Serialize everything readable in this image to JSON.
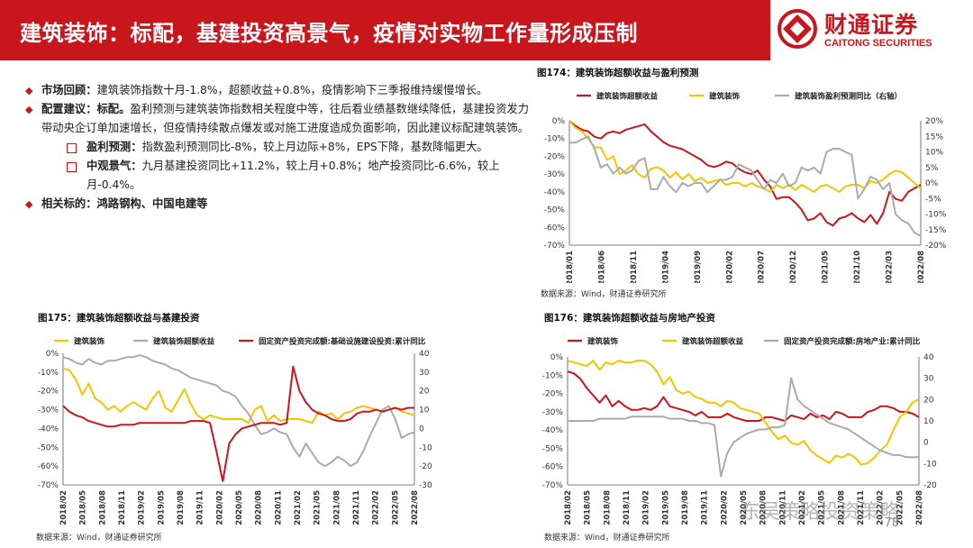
{
  "header": {
    "title": "建筑装饰：标配，基建投资高景气，疫情对实物工作量形成压制"
  },
  "logo": {
    "cn": "财通证券",
    "en": "CAITONG SECURITIES",
    "icon": "caitong-logo-icon"
  },
  "bullets": {
    "b1": {
      "head": "市场回顾：",
      "text": "建筑装饰指数十月-1.8%，超额收益+0.8%，疫情影响下三季报维持缓慢增长。"
    },
    "b2": {
      "head": "配置建议：标配。",
      "text": "盈利预测与建筑装饰指数相关程度中等，往后看业绩基数继续降低，基建投资发力带动央企订单加速增长，但疫情持续散点爆发或对施工进度造成负面影响，因此建议标配建筑装饰。"
    },
    "b3": {
      "head": "盈利预测：",
      "text": "指数盈利预测同比-8%，较上月边际+8%，EPS下降，基数降幅更大。"
    },
    "b4": {
      "head": "中观景气：",
      "text": "九月基建投资同比+11.2%，较上月+0.8%；地产投资同比-6.6%，较上月-0.4%。"
    },
    "b5": {
      "text": "相关标的：鸿路钢构、中国电建等"
    }
  },
  "colors": {
    "brand": "#c8161d",
    "red": "#c8161d",
    "yellow": "#f5c400",
    "gray": "#ababab"
  },
  "page": {
    "number": "78"
  },
  "watermark": "东吴策略投资策略",
  "chart_data": [
    {
      "id": "fig174",
      "type": "line",
      "title": "图174：建筑装饰超额收益与盈利预测",
      "source": "数据来源：Wind，财通证券研究所",
      "x_ticks": [
        "2018/01",
        "2018/06",
        "2018/11",
        "2019/04",
        "2019/09",
        "2020/02",
        "2020/07",
        "2020/12",
        "2021/05",
        "2021/10",
        "2022/03",
        "2022/08"
      ],
      "n": 57,
      "ylim_left": [
        -70,
        0
      ],
      "ylim_right": [
        -20,
        20
      ],
      "left_ticks": [
        "0%",
        "-10%",
        "-20%",
        "-30%",
        "-40%",
        "-50%",
        "-60%",
        "-70%"
      ],
      "right_ticks": [
        "20%",
        "15%",
        "10%",
        "5%",
        "0%",
        "-5%",
        "-10%",
        "-15%",
        "-20%"
      ],
      "series": [
        {
          "name": "建筑装饰超额收益",
          "color": "#c8161d",
          "axis": "left",
          "values": [
            0,
            -3,
            -5,
            -6,
            -9,
            -10,
            -7,
            -6,
            -7,
            -5,
            -4,
            -3,
            -2,
            -6,
            -9,
            -12,
            -14,
            -15,
            -16,
            -18,
            -20,
            -22,
            -25,
            -26,
            -25,
            -23,
            -24,
            -27,
            -29,
            -30,
            -28,
            -33,
            -37,
            -44,
            -43,
            -43,
            -46,
            -50,
            -56,
            -55,
            -52,
            -57,
            -59,
            -55,
            -54,
            -52,
            -55,
            -57,
            -53,
            -58,
            -52,
            -40,
            -44,
            -45,
            -40,
            -38,
            -36
          ]
        },
        {
          "name": "建筑装饰",
          "color": "#f5c400",
          "axis": "left",
          "values": [
            0,
            -4,
            -6,
            -10,
            -15,
            -15,
            -22,
            -20,
            -30,
            -28,
            -25,
            -30,
            -32,
            -27,
            -26,
            -28,
            -32,
            -29,
            -33,
            -30,
            -34,
            -32,
            -35,
            -34,
            -33,
            -36,
            -35,
            -35,
            -37,
            -35,
            -37,
            -38,
            -40,
            -36,
            -38,
            -36,
            -39,
            -36,
            -38,
            -40,
            -37,
            -36,
            -38,
            -40,
            -37,
            -36,
            -36,
            -38,
            -34,
            -35,
            -33,
            -30,
            -28,
            -29,
            -32,
            -35,
            -38
          ]
        },
        {
          "name": "建筑装饰盈利预测同比（右轴）",
          "color": "#ababab",
          "axis": "right",
          "values": [
            13,
            13,
            14,
            15,
            11,
            5,
            6,
            3,
            5,
            3,
            4,
            7,
            8,
            -2,
            -2,
            2,
            -1,
            -3,
            0,
            -1,
            0,
            0,
            -3,
            -1,
            1,
            1,
            2,
            6,
            5,
            4,
            1,
            -2,
            1,
            0,
            3,
            -1,
            0,
            5,
            4,
            5,
            3,
            10,
            11,
            11,
            10,
            9,
            -5,
            -2,
            2,
            1,
            -2,
            0,
            -10,
            -12,
            -13,
            -16,
            -17
          ]
        }
      ]
    },
    {
      "id": "fig175",
      "type": "line",
      "title": "图175：建筑装饰超额收益与基建投资",
      "source": "数据来源：Wind，财通证券研究所",
      "x_ticks": [
        "2018/02",
        "2018/05",
        "2018/08",
        "2018/11",
        "2019/02",
        "2019/05",
        "2019/08",
        "2019/11",
        "2020/02",
        "2020/05",
        "2020/08",
        "2020/11",
        "2021/02",
        "2021/05",
        "2021/08",
        "2021/11",
        "2022/02",
        "2022/05",
        "2022/08"
      ],
      "n": 56,
      "ylim_left": [
        -70,
        0
      ],
      "ylim_right": [
        -30,
        40
      ],
      "left_ticks": [
        "0%",
        "-10%",
        "-20%",
        "-30%",
        "-40%",
        "-50%",
        "-60%",
        "-70%"
      ],
      "right_ticks": [
        "40",
        "30",
        "20",
        "10",
        "0",
        "-10",
        "-20",
        "-30"
      ],
      "legend": [
        "建筑装饰",
        "建筑装饰超额收益",
        "固定资产投资完成额:基础设施建设投资:累计同比"
      ],
      "series": [
        {
          "name": "建筑装饰",
          "color": "#f5c400",
          "axis": "left",
          "values": [
            -8,
            -9,
            -14,
            -22,
            -16,
            -24,
            -26,
            -30,
            -28,
            -31,
            -28,
            -26,
            -28,
            -30,
            -24,
            -20,
            -29,
            -31,
            -25,
            -19,
            -27,
            -33,
            -35,
            -33,
            -34,
            -35,
            -35,
            -35,
            -35,
            -37,
            -30,
            -28,
            -36,
            -33,
            -36,
            -35,
            -35,
            -35,
            -36,
            -37,
            -31,
            -33,
            -32,
            -35,
            -32,
            -31,
            -29,
            -28,
            -29,
            -30,
            -31,
            -30,
            -29,
            -31,
            -32,
            -33
          ]
        },
        {
          "name": "建筑装饰超额收益",
          "color": "#ababab",
          "axis": "left",
          "values": [
            -2,
            -3,
            -5,
            -6,
            -3,
            -5,
            -6,
            -4,
            -4,
            -3,
            -2,
            -2,
            -1,
            -2,
            -4,
            -5,
            -6,
            -8,
            -9,
            -11,
            -13,
            -14,
            -15,
            -16,
            -17,
            -20,
            -21,
            -23,
            -28,
            -32,
            -38,
            -43,
            -42,
            -40,
            -42,
            -43,
            -50,
            -55,
            -48,
            -53,
            -58,
            -60,
            -58,
            -55,
            -57,
            -60,
            -58,
            -52,
            -44,
            -37,
            -30,
            -28,
            -35,
            -45,
            -43,
            -42
          ]
        },
        {
          "name": "固定资产投资完成额:基础设施建设投资:累计同比",
          "color": "#c8161d",
          "axis": "right",
          "values": [
            12,
            9,
            7,
            6,
            4,
            3,
            2,
            1,
            1,
            2,
            2,
            2,
            3,
            3,
            3,
            3,
            3,
            3,
            3,
            3,
            4,
            4,
            4,
            3,
            -12,
            -28,
            -8,
            -3,
            0,
            1,
            2,
            3,
            3,
            3,
            2,
            3,
            33,
            20,
            14,
            10,
            8,
            7,
            5,
            4,
            4,
            5,
            8,
            9,
            9,
            10,
            9,
            10,
            11,
            10,
            11,
            11
          ]
        }
      ]
    },
    {
      "id": "fig176",
      "type": "line",
      "title": "图176：建筑装饰超额收益与房地产投资",
      "source": "数据来源：Wind，财通证券研究所",
      "x_ticks": [
        "2018/02",
        "2018/05",
        "2018/08",
        "2018/11",
        "2019/02",
        "2019/05",
        "2019/08",
        "2019/11",
        "2020/02",
        "2020/05",
        "2020/08",
        "2020/11",
        "2021/02",
        "2021/05",
        "2021/08",
        "2021/11",
        "2022/02",
        "2022/05",
        "2022/08"
      ],
      "n": 56,
      "ylim_left": [
        -70,
        0
      ],
      "ylim_right": [
        -20,
        40
      ],
      "left_ticks": [
        "0%",
        "-10%",
        "-20%",
        "-30%",
        "-40%",
        "-50%",
        "-60%",
        "-70%"
      ],
      "right_ticks": [
        "40",
        "30",
        "20",
        "10",
        "0",
        "-10",
        "-20"
      ],
      "legend": [
        "建筑装饰",
        "建筑装饰超额收益",
        "固定资产投资完成额:房地产业:累计同比"
      ],
      "series": [
        {
          "name": "建筑装饰",
          "color": "#c8161d",
          "axis": "left",
          "values": [
            -8,
            -9,
            -12,
            -17,
            -21,
            -25,
            -21,
            -27,
            -24,
            -27,
            -29,
            -29,
            -28,
            -29,
            -27,
            -22,
            -27,
            -28,
            -29,
            -30,
            -32,
            -30,
            -33,
            -33,
            -33,
            -31,
            -33,
            -34,
            -35,
            -35,
            -35,
            -33,
            -33,
            -34,
            -35,
            -32,
            -33,
            -34,
            -31,
            -33,
            -32,
            -34,
            -30,
            -31,
            -33,
            -33,
            -33,
            -30,
            -29,
            -27,
            -27,
            -28,
            -30,
            -30,
            -31,
            -33
          ]
        },
        {
          "name": "建筑装饰超额收益",
          "color": "#f5c400",
          "axis": "left",
          "values": [
            -2,
            -3,
            -4,
            -5,
            -2,
            -7,
            -3,
            -4,
            -2,
            -3,
            -3,
            -2,
            -2,
            -4,
            -8,
            -15,
            -11,
            -18,
            -20,
            -19,
            -22,
            -23,
            -25,
            -25,
            -27,
            -24,
            -25,
            -28,
            -29,
            -30,
            -31,
            -36,
            -41,
            -45,
            -43,
            -47,
            -48,
            -46,
            -51,
            -54,
            -56,
            -58,
            -54,
            -55,
            -53,
            -55,
            -59,
            -58,
            -55,
            -51,
            -48,
            -40,
            -33,
            -30,
            -25,
            -23
          ]
        },
        {
          "name": "固定资产投资完成额:房地产业:累计同比",
          "color": "#ababab",
          "axis": "right",
          "values": [
            10,
            10,
            10,
            10,
            10,
            11,
            11,
            11,
            11,
            11,
            12,
            12,
            12,
            12,
            12,
            12,
            11,
            11,
            11,
            10,
            10,
            9,
            9,
            8,
            -16,
            -5,
            0,
            2,
            4,
            5,
            6,
            6,
            7,
            7,
            8,
            30,
            20,
            17,
            15,
            13,
            11,
            9,
            8,
            7,
            6,
            4,
            2,
            0,
            -2,
            -4,
            -5,
            -6,
            -6,
            -7,
            -7,
            -7
          ]
        }
      ]
    }
  ]
}
